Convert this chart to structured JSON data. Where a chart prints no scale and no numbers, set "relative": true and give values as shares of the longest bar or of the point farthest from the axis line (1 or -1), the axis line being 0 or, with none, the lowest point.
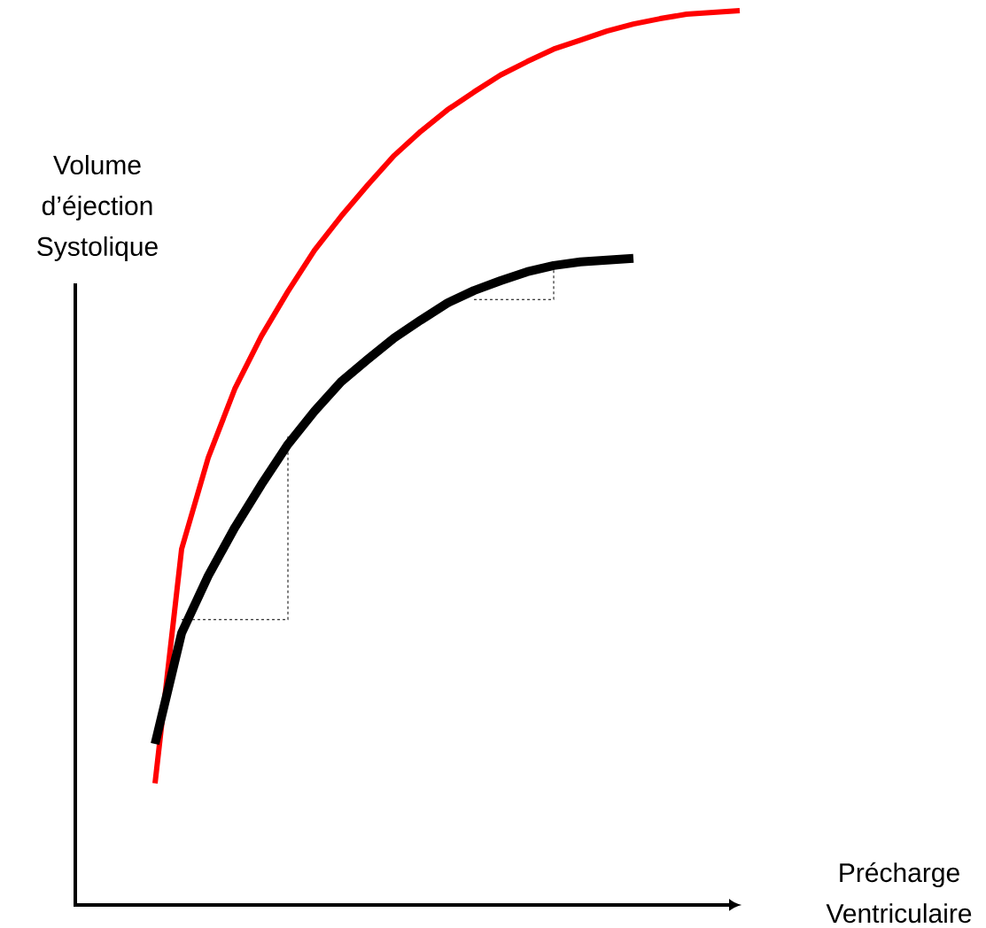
{
  "chart_data": {
    "type": "line",
    "relative": true,
    "annotations": [
      "Précharge Ventriculaire"
    ],
    "ylabel": "Volume d’éjection Systolique",
    "categories": [
      null,
      null,
      null,
      null,
      null,
      null,
      null,
      null,
      null,
      null,
      null,
      null,
      null,
      null,
      null,
      null,
      null,
      null,
      null,
      null,
      null,
      null,
      null
    ],
    "series": [
      {
        "color": "#ff0000",
        "line_style": "solid",
        "values": [
          0.136,
          0.398,
          0.5,
          0.577,
          0.636,
          0.686,
          0.732,
          0.77,
          0.805,
          0.838,
          0.865,
          0.889,
          0.909,
          0.928,
          0.943,
          0.957,
          0.967,
          0.977,
          0.985,
          0.991,
          0.996,
          0.998,
          1
        ]
      },
      {
        "color": "#000000",
        "line_style": "solid",
        "values": [
          0.18,
          0.304,
          0.368,
          0.422,
          0.47,
          0.515,
          0.552,
          0.585,
          0.61,
          0.634,
          0.654,
          0.673,
          0.687,
          0.698,
          0.708,
          0.715,
          0.719,
          0.721,
          0.723,
          null,
          null,
          null,
          null
        ]
      },
      {
        "type": "step",
        "color": "#000000",
        "line_style": "dashed",
        "values": [
          null,
          0.319,
          0.319,
          0.319,
          0.319,
          0.527,
          null,
          null,
          null,
          null,
          null,
          null,
          0.677,
          0.677,
          0.677,
          0.715,
          null,
          null,
          null,
          null,
          null,
          null,
          null
        ]
      }
    ]
  }
}
